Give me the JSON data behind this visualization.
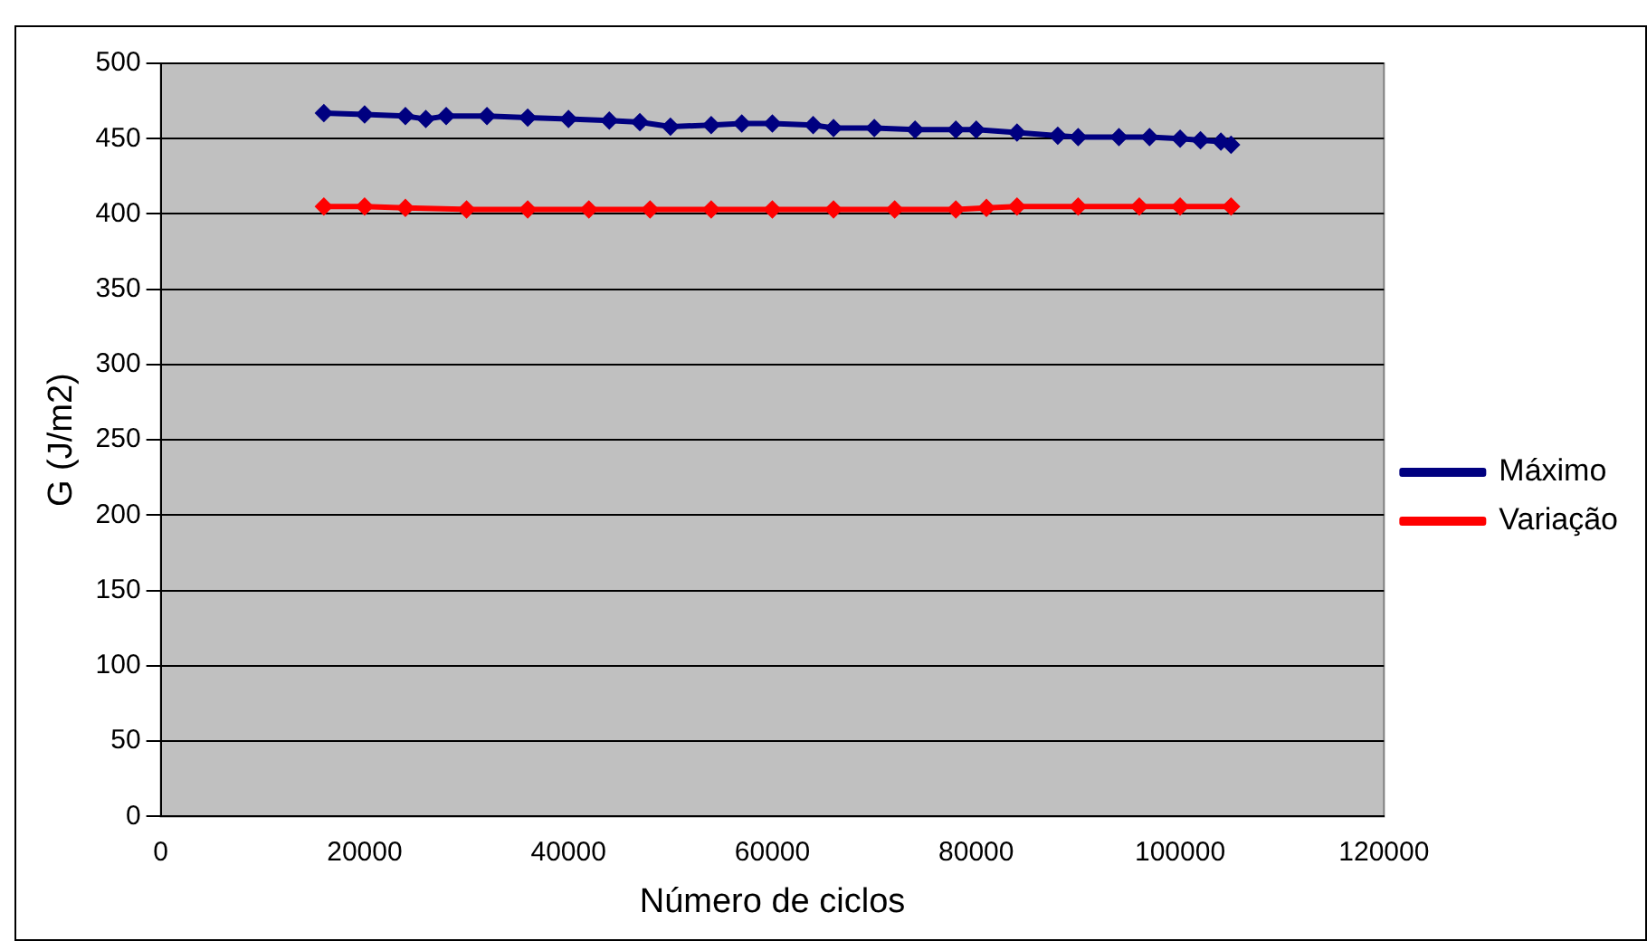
{
  "chart_data": {
    "type": "line",
    "xlabel": "Número de ciclos",
    "ylabel": "G (J/m2)",
    "xlim": [
      0,
      120000
    ],
    "xticks": [
      0,
      20000,
      40000,
      60000,
      80000,
      100000,
      120000
    ],
    "ylim": [
      0,
      500
    ],
    "yticks": [
      0,
      50,
      100,
      150,
      200,
      250,
      300,
      350,
      400,
      450,
      500
    ],
    "grid": "y",
    "legend": "right",
    "marker": "diamond",
    "line_style": "solid",
    "series": [
      {
        "name": "Máximo",
        "color": "#000080",
        "x": [
          16000,
          20000,
          24000,
          26000,
          28000,
          32000,
          36000,
          40000,
          44000,
          47000,
          50000,
          54000,
          57000,
          60000,
          64000,
          66000,
          70000,
          74000,
          78000,
          80000,
          84000,
          88000,
          90000,
          94000,
          97000,
          100000,
          102000,
          104000,
          105000
        ],
        "values": [
          467,
          466,
          465,
          463,
          465,
          465,
          464,
          463,
          462,
          461,
          458,
          459,
          460,
          460,
          459,
          457,
          457,
          456,
          456,
          456,
          454,
          452,
          451,
          451,
          451,
          450,
          449,
          448,
          446
        ]
      },
      {
        "name": "Variação",
        "color": "#ff0000",
        "x": [
          16000,
          20000,
          24000,
          30000,
          36000,
          42000,
          48000,
          54000,
          60000,
          66000,
          72000,
          78000,
          81000,
          84000,
          90000,
          96000,
          100000,
          105000
        ],
        "values": [
          405,
          405,
          404,
          403,
          403,
          403,
          403,
          403,
          403,
          403,
          403,
          403,
          404,
          405,
          405,
          405,
          405,
          405
        ]
      }
    ]
  }
}
